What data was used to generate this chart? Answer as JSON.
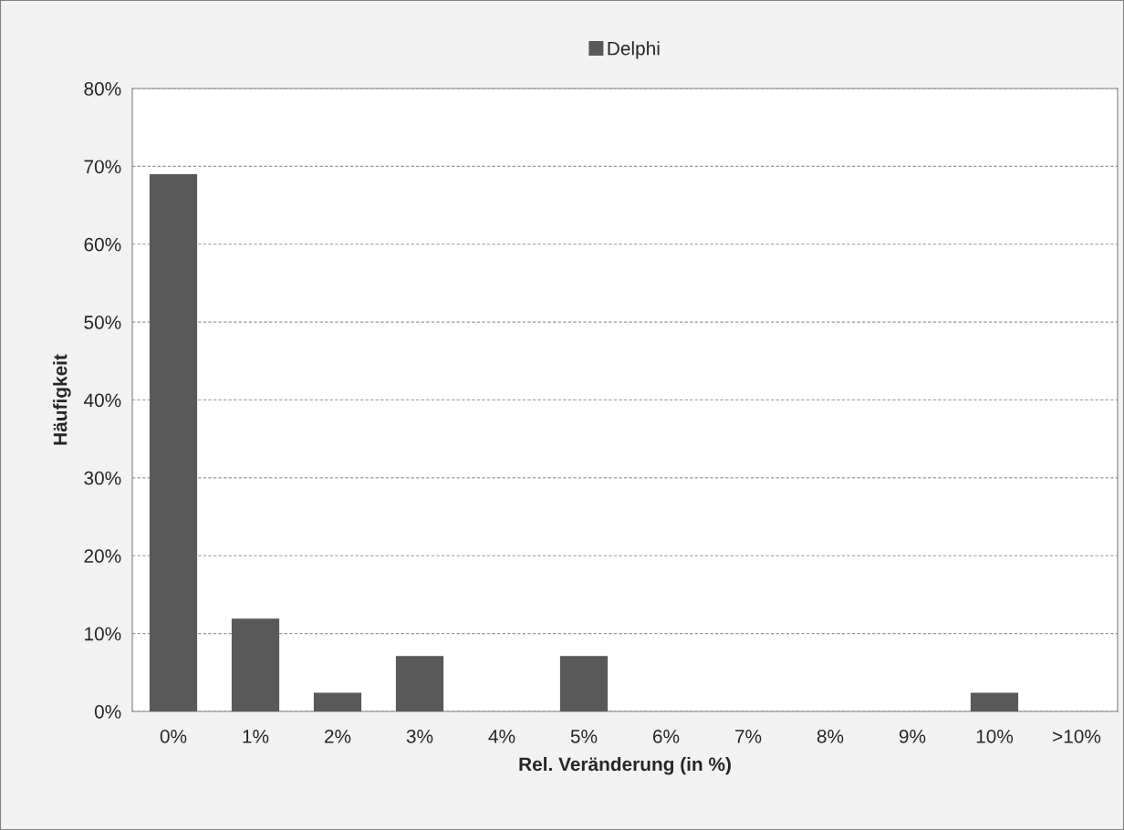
{
  "chart_data": {
    "type": "bar",
    "xlabel": "Rel. Veränderung (in %)",
    "ylabel": "Häufigkeit",
    "categories": [
      "0%",
      "1%",
      "2%",
      "3%",
      "4%",
      "5%",
      "6%",
      "7%",
      "8%",
      "9%",
      "10%",
      ">10%"
    ],
    "series": [
      {
        "name": "Delphi",
        "color": "#595959",
        "values": [
          69.0,
          11.9,
          2.4,
          7.1,
          0,
          7.1,
          0,
          0,
          0,
          0,
          2.4,
          0
        ]
      }
    ],
    "ylim": [
      0,
      80
    ],
    "yticks": [
      {
        "value": 0,
        "label": "0%"
      },
      {
        "value": 10,
        "label": "10%"
      },
      {
        "value": 20,
        "label": "20%"
      },
      {
        "value": 30,
        "label": "30%"
      },
      {
        "value": 40,
        "label": "40%"
      },
      {
        "value": 50,
        "label": "50%"
      },
      {
        "value": 60,
        "label": "60%"
      },
      {
        "value": 70,
        "label": "70%"
      },
      {
        "value": 80,
        "label": "80%"
      }
    ],
    "grid": "y",
    "legend": "top"
  }
}
